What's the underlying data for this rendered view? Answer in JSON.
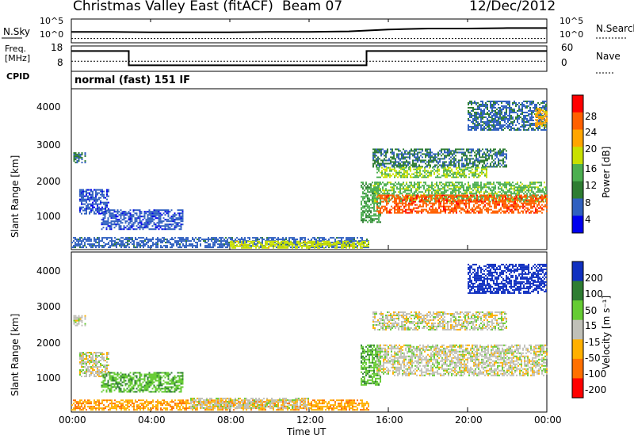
{
  "header": {
    "station": "Christmas Valley East (fitACF)",
    "beam": "Beam 07",
    "date": "12/Dec/2012"
  },
  "noise_panel": {
    "left_label": "N.Sky",
    "right_label": "N.Search",
    "ticks_left": [
      "10^5",
      "10^0"
    ],
    "ticks_right": [
      "10^5",
      "10^0"
    ]
  },
  "freq_panel": {
    "left_label_1": "Freq.",
    "left_label_2": "[MHz]",
    "right_label": "Nave",
    "ticks_left": [
      "18",
      "8"
    ],
    "ticks_right": [
      "60",
      "0"
    ]
  },
  "cpid": {
    "label": "CPID",
    "text": "normal (fast) 151 IF"
  },
  "power_panel": {
    "ylabel": "Slant Range [km]",
    "yticks": [
      "4000",
      "3000",
      "2000",
      "1000"
    ],
    "colorbar_label": "Power [dB]",
    "colorbar_ticks": [
      "28",
      "24",
      "20",
      "16",
      "12",
      "8",
      "4"
    ]
  },
  "velocity_panel": {
    "ylabel": "Slant Range [km]",
    "yticks": [
      "4000",
      "3000",
      "2000",
      "1000"
    ],
    "colorbar_label": "Velocity [m s⁻¹]",
    "colorbar_ticks": [
      "200",
      "100",
      "50",
      "15",
      "-15",
      "-50",
      "-100",
      "-200"
    ]
  },
  "xaxis": {
    "label": "Time UT",
    "ticks": [
      "00:00",
      "04:00",
      "08:00",
      "12:00",
      "16:00",
      "20:00",
      "00:00"
    ]
  },
  "colors": {
    "power_scale": [
      "#0000ee",
      "#3060c0",
      "#2e7d32",
      "#4caf50",
      "#c8e000",
      "#ffa500",
      "#ff6000",
      "#ff0000"
    ],
    "velocity_scale": [
      "#1030c0",
      "#2e7d32",
      "#66cc33",
      "#c0c0b8",
      "#ffb000",
      "#ff7000",
      "#ff0000"
    ]
  },
  "chart_data": [
    {
      "type": "line",
      "name": "noise",
      "x_hours": [
        0,
        2,
        4,
        6,
        8,
        10,
        12,
        14,
        16,
        18,
        20,
        22,
        24
      ],
      "series": [
        {
          "values_log10": [
            2.3,
            2.3,
            2.2,
            2.2,
            2.2,
            2.3,
            2.3,
            2.4,
            2.8,
            3.0,
            3.0,
            3.1,
            3.1
          ]
        },
        {
          "values_log10": [
            0.9,
            0.9,
            0.9,
            0.9,
            0.9,
            0.9,
            0.9,
            0.9,
            0.9,
            0.9,
            0.9,
            0.9,
            0.9
          ]
        }
      ],
      "ylim_log10": [
        0,
        5
      ]
    },
    {
      "type": "line",
      "name": "frequency",
      "x_hours": [
        0,
        2.9,
        2.9,
        14.9,
        14.9,
        24
      ],
      "values": [
        16,
        16,
        10.4,
        10.4,
        16,
        16
      ],
      "ylim": [
        8,
        18
      ],
      "nave_dotted": 12
    },
    {
      "type": "heatmap",
      "name": "power",
      "xlim": [
        0,
        24
      ],
      "ylim": [
        180,
        4500
      ],
      "clim": [
        0,
        30
      ],
      "regions": [
        {
          "t0": 0.1,
          "t1": 0.7,
          "r0": 2500,
          "r1": 2800,
          "v": 8
        },
        {
          "t0": 0.4,
          "t1": 1.9,
          "r0": 1150,
          "r1": 1800,
          "v": 5
        },
        {
          "t0": 1.5,
          "t1": 5.6,
          "r0": 700,
          "r1": 1250,
          "v": 5
        },
        {
          "t0": 0,
          "t1": 15,
          "r0": 200,
          "r1": 500,
          "v": 6
        },
        {
          "t0": 8,
          "t1": 15,
          "r0": 200,
          "r1": 400,
          "v": 17
        },
        {
          "t0": 14.6,
          "t1": 15.6,
          "r0": 900,
          "r1": 2000,
          "v": 12
        },
        {
          "t0": 15.2,
          "t1": 22,
          "r0": 2400,
          "r1": 2900,
          "v": 8
        },
        {
          "t0": 15.4,
          "t1": 21,
          "r0": 2100,
          "r1": 2400,
          "v": 15
        },
        {
          "t0": 15.2,
          "t1": 24,
          "r0": 1450,
          "r1": 2000,
          "v": 14
        },
        {
          "t0": 15.4,
          "t1": 24,
          "r0": 1150,
          "r1": 1650,
          "v": 25
        },
        {
          "t0": 20,
          "t1": 24,
          "r0": 3400,
          "r1": 4200,
          "v": 7
        },
        {
          "t0": 23.4,
          "t1": 24,
          "r0": 3500,
          "r1": 4000,
          "v": 20
        }
      ]
    },
    {
      "type": "heatmap",
      "name": "velocity",
      "xlim": [
        0,
        24
      ],
      "ylim": [
        180,
        4500
      ],
      "clim": [
        -200,
        200
      ],
      "regions": [
        {
          "t0": 0.1,
          "t1": 0.7,
          "r0": 2500,
          "r1": 2800,
          "v": 0
        },
        {
          "t0": 0.4,
          "t1": 1.9,
          "r0": 1150,
          "r1": 1800,
          "v": 0
        },
        {
          "t0": 1.5,
          "t1": 5.6,
          "r0": 700,
          "r1": 1250,
          "v": 40
        },
        {
          "t0": 0,
          "t1": 15,
          "r0": 200,
          "r1": 500,
          "v": -40
        },
        {
          "t0": 6,
          "t1": 12,
          "r0": 250,
          "r1": 550,
          "v": 0
        },
        {
          "t0": 14.6,
          "t1": 15.6,
          "r0": 900,
          "r1": 2000,
          "v": 40
        },
        {
          "t0": 15.2,
          "t1": 22,
          "r0": 2400,
          "r1": 2900,
          "v": 0
        },
        {
          "t0": 15.4,
          "t1": 24,
          "r0": 1150,
          "r1": 2000,
          "v": 0
        },
        {
          "t0": 20,
          "t1": 24,
          "r0": 3400,
          "r1": 4200,
          "v": 150
        }
      ]
    }
  ]
}
